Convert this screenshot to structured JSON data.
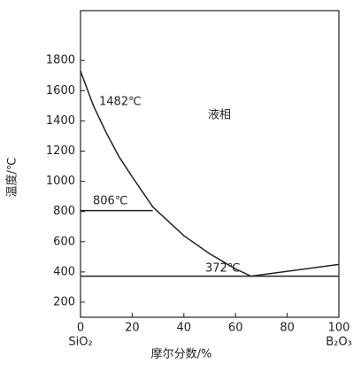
{
  "chart_data": {
    "type": "line",
    "xlabel": "摩尔分数/%",
    "ylabel": "温度/℃",
    "xlim": [
      0,
      100
    ],
    "xticks": [
      0,
      20,
      40,
      60,
      80,
      100
    ],
    "ylim": [
      100,
      2130
    ],
    "yticks": [
      200,
      400,
      600,
      800,
      1000,
      1200,
      1400,
      1600,
      1800
    ],
    "end_labels": [
      "SiO₂",
      "B₂O₃"
    ],
    "annotations": [
      "1482℃",
      "液相",
      "806℃",
      "372℃"
    ],
    "series": [
      {
        "color": "#222222",
        "x": [
          0,
          5,
          10,
          15,
          20,
          28,
          40,
          50,
          60,
          66,
          100
        ],
        "values": [
          1730,
          1500,
          1320,
          1160,
          1030,
          830,
          640,
          520,
          420,
          372,
          450
        ]
      },
      {
        "color": "#222222",
        "x": [
          0,
          28
        ],
        "values": [
          806,
          806
        ]
      },
      {
        "color": "#222222",
        "x": [
          0,
          100
        ],
        "values": [
          372,
          372
        ]
      }
    ]
  }
}
